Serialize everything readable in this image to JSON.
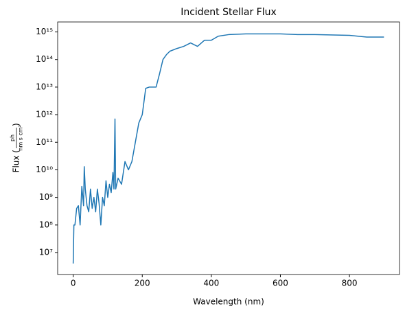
{
  "chart_data": {
    "type": "line",
    "title": "Incident Stellar Flux",
    "xlabel": "Wavelength (nm)",
    "ylabel": {
      "prefix": "Flux (",
      "numerator": "ph",
      "denominator": "nm s cm²",
      "suffix": ")"
    },
    "log_y": true,
    "xlim": [
      -45,
      945
    ],
    "xticks": [
      0,
      200,
      400,
      600,
      800
    ],
    "ylim": [
      1600000,
      2300000000000000
    ],
    "yticks": [
      {
        "value": 10000000,
        "label": "10⁷"
      },
      {
        "value": 100000000,
        "label": "10⁸"
      },
      {
        "value": 1000000000,
        "label": "10⁹"
      },
      {
        "value": 10000000000,
        "label": "10¹⁰"
      },
      {
        "value": 100000000000,
        "label": "10¹¹"
      },
      {
        "value": 1000000000000,
        "label": "10¹²"
      },
      {
        "value": 10000000000000,
        "label": "10¹³"
      },
      {
        "value": 100000000000000,
        "label": "10¹⁴"
      },
      {
        "value": 1000000000000000,
        "label": "10¹⁵"
      }
    ],
    "series": [
      {
        "name": "Flux",
        "color": "#1f77b4",
        "x": [
          0,
          2,
          5,
          10,
          15,
          20,
          25,
          30,
          32,
          35,
          40,
          45,
          50,
          55,
          60,
          65,
          70,
          75,
          80,
          85,
          90,
          95,
          100,
          105,
          110,
          115,
          118,
          121,
          123,
          130,
          140,
          150,
          160,
          170,
          180,
          190,
          200,
          210,
          220,
          240,
          250,
          260,
          270,
          280,
          300,
          320,
          340,
          360,
          380,
          400,
          420,
          450,
          500,
          600,
          650,
          700,
          800,
          850,
          900
        ],
        "values": [
          4000000,
          100000000,
          100000000,
          400000000,
          500000000,
          100000000,
          2500000000,
          500000000,
          13000000000,
          2000000000,
          500000000,
          300000000,
          2000000000,
          400000000,
          1000000000,
          300000000,
          2000000000,
          600000000,
          100000000,
          1000000000,
          500000000,
          4000000000,
          1000000000,
          3000000000,
          1500000000,
          8000000000,
          2000000000,
          700000000000,
          2000000000,
          5000000000,
          3000000000,
          20000000000,
          10000000000,
          20000000000,
          100000000000,
          500000000000,
          1000000000000,
          9000000000000,
          10000000000000,
          10000000000000,
          30000000000000,
          100000000000000,
          150000000000000,
          200000000000000,
          250000000000000,
          300000000000000,
          400000000000000,
          300000000000000,
          500000000000000,
          500000000000000,
          700000000000000,
          800000000000000,
          850000000000000,
          850000000000000,
          800000000000000,
          800000000000000,
          750000000000000,
          650000000000000,
          650000000000000
        ]
      }
    ]
  }
}
